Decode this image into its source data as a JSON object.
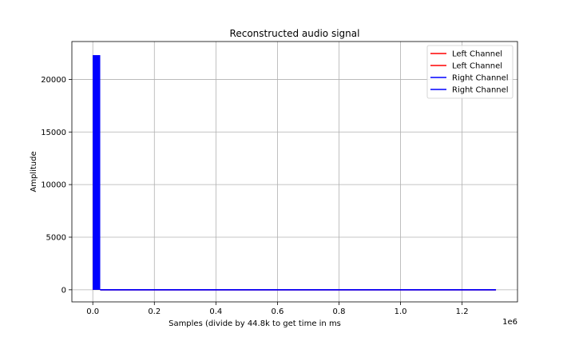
{
  "chart_data": {
    "type": "line",
    "title": "Reconstructed audio signal",
    "xlabel": "Samples (divide by 44.8k to get time in ms",
    "ylabel": "Amplitude",
    "x_scale_label": "1e6",
    "xlim": [
      -68000,
      1380000
    ],
    "ylim": [
      -1150,
      23600
    ],
    "x_ticks": [
      0,
      200000,
      400000,
      600000,
      800000,
      1000000,
      1200000
    ],
    "x_tick_labels": [
      "0.0",
      "0.2",
      "0.4",
      "0.6",
      "0.8",
      "1.0",
      "1.2"
    ],
    "y_ticks": [
      0,
      5000,
      10000,
      15000,
      20000
    ],
    "y_tick_labels": [
      "0",
      "5000",
      "10000",
      "15000",
      "20000"
    ],
    "grid": true,
    "legend_position": "top-right",
    "series": [
      {
        "name": "Left Channel",
        "color": "#ff0000",
        "burst_x": [
          0,
          24000
        ],
        "burst_max": 11200,
        "tail_x": [
          24000,
          1310000
        ],
        "tail_value": 0
      },
      {
        "name": "Left Channel",
        "color": "#ff0000",
        "burst_x": [
          0,
          24000
        ],
        "burst_max": 11200,
        "tail_x": [
          24000,
          1310000
        ],
        "tail_value": 0
      },
      {
        "name": "Right Channel",
        "color": "#0000ff",
        "burst_x": [
          0,
          24000
        ],
        "burst_max": 22300,
        "tail_x": [
          24000,
          1310000
        ],
        "tail_value": 0
      },
      {
        "name": "Right Channel",
        "color": "#0000ff",
        "burst_x": [
          0,
          24000
        ],
        "burst_max": 22300,
        "tail_x": [
          24000,
          1310000
        ],
        "tail_value": 0
      }
    ]
  }
}
